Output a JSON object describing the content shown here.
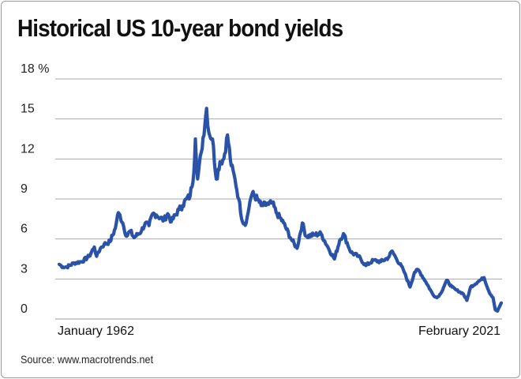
{
  "chart_data": {
    "type": "line",
    "title": "Historical US 10-year bond yields",
    "ylim": [
      0,
      18
    ],
    "y_ticks": [
      0,
      3,
      6,
      9,
      12,
      15,
      18
    ],
    "y_tick_labels": [
      "0",
      "3",
      "6",
      "9",
      "12",
      "15",
      "18 %"
    ],
    "x_tick_labels": [
      "January 1962",
      "February 2021"
    ],
    "xlim": [
      1962.0,
      2021.1
    ],
    "grid": true,
    "color": "#2a52a8",
    "series": [
      {
        "x": [
          1962.0,
          1962.5,
          1963.0,
          1964.0,
          1965.0,
          1966.0,
          1966.7,
          1967.0,
          1967.5,
          1968.0,
          1968.8,
          1969.5,
          1969.8,
          1970.0,
          1970.5,
          1971.0,
          1971.5,
          1972.0,
          1973.0,
          1973.5,
          1974.0,
          1974.5,
          1975.0,
          1976.0,
          1976.5,
          1977.0,
          1978.0,
          1978.5,
          1979.0,
          1979.5,
          1980.0,
          1980.2,
          1980.5,
          1981.0,
          1981.7,
          1982.0,
          1982.5,
          1983.0,
          1983.5,
          1984.0,
          1984.5,
          1985.0,
          1985.5,
          1986.0,
          1986.5,
          1987.0,
          1987.5,
          1987.8,
          1988.5,
          1989.0,
          1990.0,
          1990.5,
          1991.0,
          1992.0,
          1993.0,
          1993.8,
          1994.5,
          1995.0,
          1996.0,
          1997.0,
          1998.0,
          1998.8,
          1999.5,
          2000.0,
          2001.0,
          2002.0,
          2003.0,
          2004.0,
          2005.0,
          2006.0,
          2006.5,
          2007.0,
          2008.0,
          2008.9,
          2009.5,
          2010.0,
          2011.0,
          2012.0,
          2012.5,
          2013.0,
          2013.8,
          2014.5,
          2015.0,
          2016.0,
          2016.5,
          2017.0,
          2018.0,
          2018.8,
          2019.5,
          2020.0,
          2020.3,
          2020.6,
          2021.1
        ],
        "y": [
          4.1,
          3.9,
          3.9,
          4.2,
          4.3,
          4.7,
          5.4,
          4.7,
          5.3,
          5.6,
          5.8,
          6.8,
          7.8,
          7.9,
          7.2,
          6.2,
          6.6,
          6.1,
          6.6,
          7.2,
          7.0,
          7.9,
          7.8,
          7.4,
          7.9,
          7.3,
          8.2,
          8.5,
          9.0,
          9.2,
          11.0,
          13.5,
          10.5,
          12.5,
          15.8,
          14.0,
          13.5,
          10.5,
          11.8,
          12.0,
          13.8,
          11.5,
          10.5,
          9.0,
          7.3,
          7.2,
          8.8,
          9.4,
          9.0,
          8.5,
          8.6,
          8.7,
          8.0,
          7.2,
          6.0,
          5.3,
          7.2,
          6.2,
          6.3,
          6.4,
          5.3,
          4.5,
          5.9,
          6.4,
          5.0,
          4.7,
          4.0,
          4.4,
          4.3,
          4.6,
          5.1,
          4.6,
          3.7,
          2.4,
          3.5,
          3.7,
          2.8,
          1.8,
          1.6,
          1.9,
          2.9,
          2.4,
          2.2,
          1.9,
          1.4,
          2.4,
          2.8,
          3.1,
          2.0,
          1.6,
          0.7,
          0.6,
          1.2
        ]
      }
    ]
  },
  "source": "Source: www.macrotrends.net"
}
